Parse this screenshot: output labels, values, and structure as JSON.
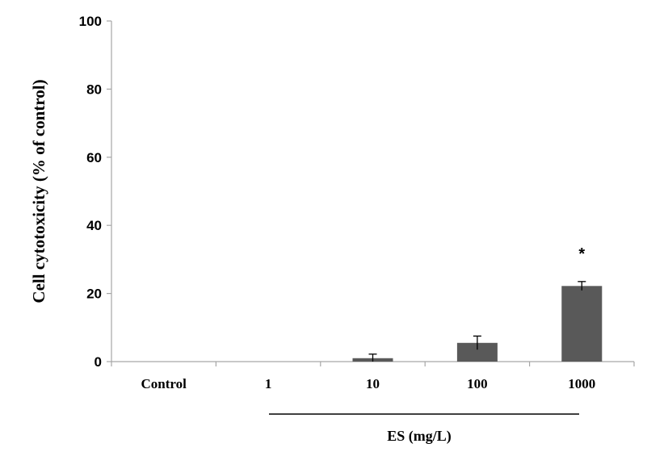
{
  "chart_data": {
    "type": "bar",
    "ylabel": "Cell cytotoxicity (% of control)",
    "group_label": "ES (mg/L)",
    "categories": [
      "Control",
      "1",
      "10",
      "100",
      "1000"
    ],
    "values": [
      0,
      0,
      1.0,
      5.5,
      22.2
    ],
    "errors": [
      0,
      0,
      1.2,
      2.0,
      1.3
    ],
    "annotations": [
      "",
      "",
      "",
      "",
      "*"
    ],
    "ylim": [
      0,
      100
    ],
    "yticks": [
      "0",
      "20",
      "40",
      "60",
      "80",
      "100"
    ],
    "grid": false,
    "bar_color": "#595959"
  }
}
